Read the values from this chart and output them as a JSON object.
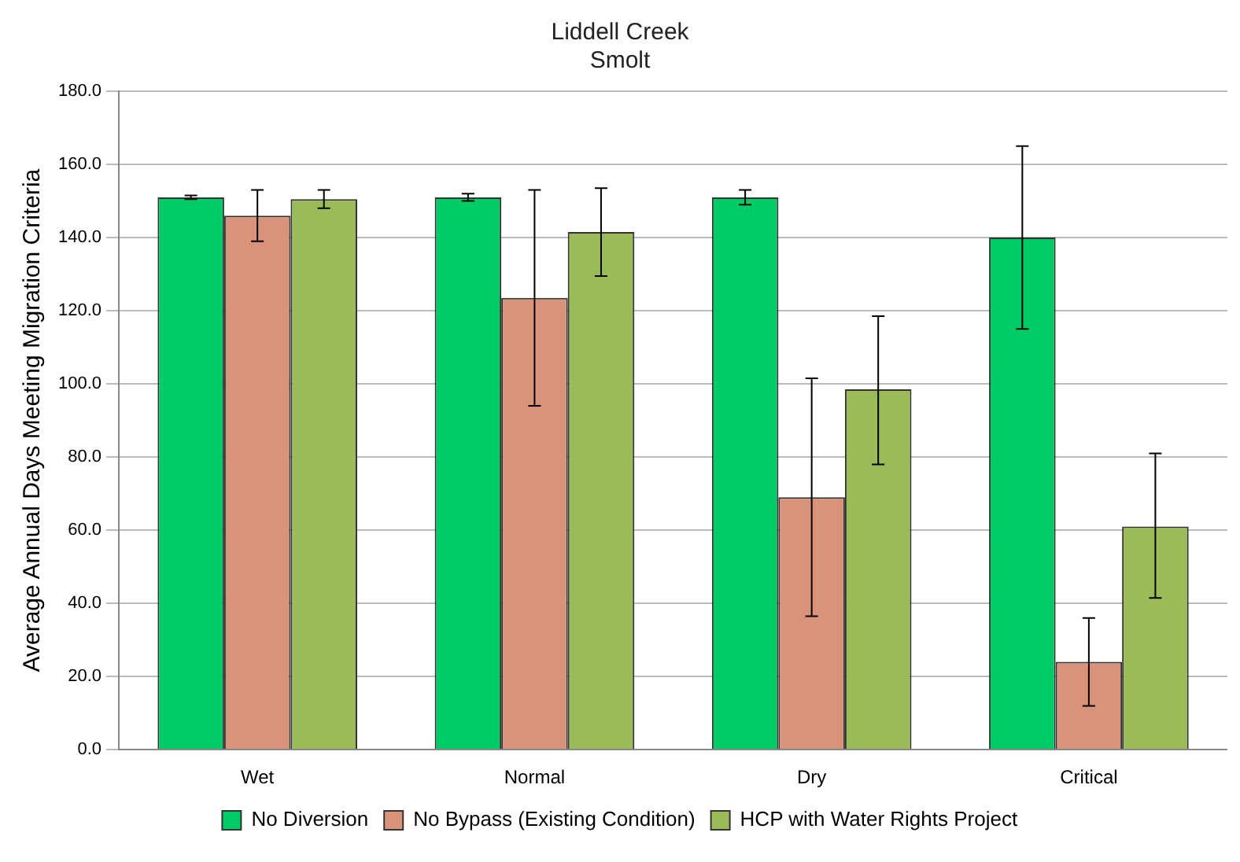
{
  "chart_data": {
    "type": "bar",
    "title": "Liddell Creek",
    "subtitle": "Smolt",
    "ylabel": "Average Annual Days Meeting Migration Criteria",
    "categories": [
      "Wet",
      "Normal",
      "Dry",
      "Critical"
    ],
    "series": [
      {
        "name": "No Diversion",
        "color": "#00cc66",
        "values": [
          151,
          151,
          151,
          140
        ],
        "errors": [
          0.5,
          1,
          2,
          25
        ]
      },
      {
        "name": "No Bypass (Existing Condition)",
        "color": "#d9937a",
        "values": [
          146,
          123.5,
          69,
          24
        ],
        "errors": [
          [
            139,
            153
          ],
          [
            94,
            153
          ],
          [
            36.5,
            101.5
          ],
          [
            12,
            36
          ]
        ]
      },
      {
        "name": "HCP with Water Rights Project",
        "color": "#9bbb59",
        "values": [
          150.5,
          141.5,
          98.5,
          61
        ],
        "errors": [
          [
            148,
            153
          ],
          [
            129.5,
            153.5
          ],
          [
            78,
            118.5
          ],
          [
            41.5,
            81
          ]
        ]
      }
    ],
    "ylim": [
      0,
      180
    ],
    "yticks": [
      {
        "value": 0,
        "label": "0.0"
      },
      {
        "value": 20,
        "label": "20.0"
      },
      {
        "value": 40,
        "label": "40.0"
      },
      {
        "value": 60,
        "label": "60.0"
      },
      {
        "value": 80,
        "label": "80.0"
      },
      {
        "value": 100,
        "label": "100.0"
      },
      {
        "value": 120,
        "label": "120.0"
      },
      {
        "value": 140,
        "label": "140.0"
      },
      {
        "value": 160,
        "label": "160.0"
      },
      {
        "value": 180,
        "label": "180.0"
      }
    ],
    "grid": "y",
    "legend": "bottom"
  }
}
